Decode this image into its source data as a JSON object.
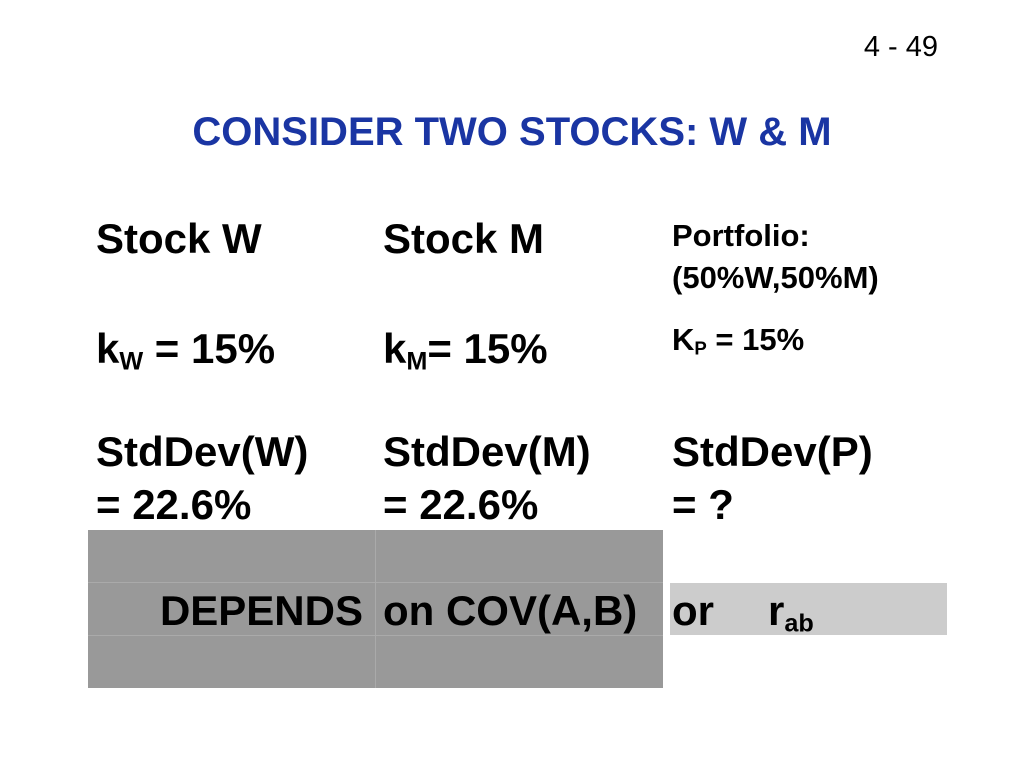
{
  "page_number": "4 - 49",
  "title": "CONSIDER TWO STOCKS: W & M",
  "columns": [
    {
      "heading": [
        "Stock W"
      ],
      "return": {
        "symbol": "k",
        "subscript": "W",
        "value": " = 15%"
      },
      "stddev": [
        "StdDev(W)",
        "= 22.6%"
      ]
    },
    {
      "heading": [
        "Stock M"
      ],
      "return": {
        "symbol": "k",
        "subscript": "M",
        "value": "= 15%"
      },
      "stddev": [
        "StdDev(M)",
        "= 22.6%"
      ]
    },
    {
      "heading": [
        "Portfolio:",
        "(50%W,50%M)"
      ],
      "return": {
        "symbol": "K",
        "subscript": "P",
        "value": " = 15%"
      },
      "stddev": [
        "StdDev(P)",
        "= ?"
      ]
    }
  ],
  "footer": {
    "left": "DEPENDS",
    "middle": "on COV(A,B)",
    "right": {
      "text": "or",
      "symbol": "r",
      "subscript": "ab"
    }
  }
}
